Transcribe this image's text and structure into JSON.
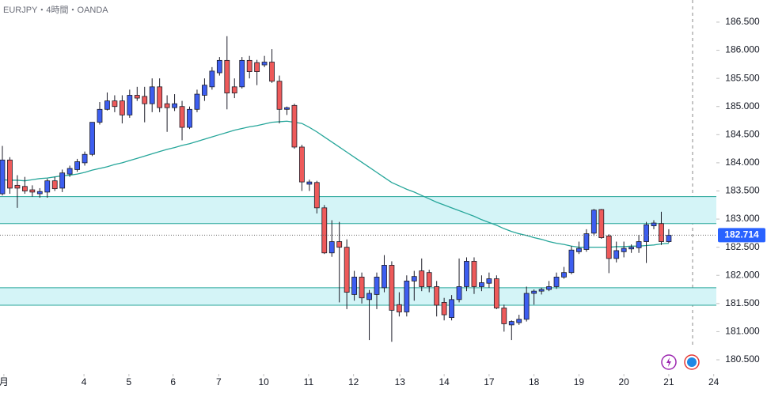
{
  "chart_data": {
    "type": "candlestick",
    "title": "EURJPY・4時間・OANDA",
    "xlim": [
      -0.317,
      95.35
    ],
    "xticks": [
      {
        "value": 0.2,
        "label": "月"
      },
      {
        "value": 10.9,
        "label": "4"
      },
      {
        "value": 16.9,
        "label": "5"
      },
      {
        "value": 22.8,
        "label": "6"
      },
      {
        "value": 28.9,
        "label": "7"
      },
      {
        "value": 34.9,
        "label": "10"
      },
      {
        "value": 40.9,
        "label": "11"
      },
      {
        "value": 46.9,
        "label": "12"
      },
      {
        "value": 53.1,
        "label": "13"
      },
      {
        "value": 59.0,
        "label": "14"
      },
      {
        "value": 65.0,
        "label": "17"
      },
      {
        "value": 71.0,
        "label": "18"
      },
      {
        "value": 77.0,
        "label": "19"
      },
      {
        "value": 83.0,
        "label": "20"
      },
      {
        "value": 89.0,
        "label": "21"
      },
      {
        "value": 95.0,
        "label": "24"
      }
    ],
    "ylim": [
      180.247,
      186.893
    ],
    "yticks": [
      {
        "value": 180.5,
        "label": "180.500"
      },
      {
        "value": 181.0,
        "label": "181.000"
      },
      {
        "value": 181.5,
        "label": "181.500"
      },
      {
        "value": 182.0,
        "label": "182.000"
      },
      {
        "value": 182.5,
        "label": "182.500"
      },
      {
        "value": 183.0,
        "label": "183.000"
      },
      {
        "value": 183.5,
        "label": "183.500"
      },
      {
        "value": 184.0,
        "label": "184.000"
      },
      {
        "value": 184.5,
        "label": "184.500"
      },
      {
        "value": 185.0,
        "label": "185.000"
      },
      {
        "value": 185.5,
        "label": "185.500"
      },
      {
        "value": 186.0,
        "label": "186.000"
      },
      {
        "value": 186.5,
        "label": "186.500"
      }
    ],
    "up_color": "#3d5ef0",
    "down_color": "#ee5a5a",
    "x": [
      0,
      1,
      2,
      3,
      4,
      5,
      6,
      7,
      8,
      9,
      10,
      11,
      12,
      13,
      14,
      15,
      16,
      17,
      18,
      19,
      20,
      21,
      22,
      23,
      24,
      25,
      26,
      27,
      28,
      29,
      30,
      31,
      32,
      33,
      34,
      35,
      36,
      37,
      38,
      39,
      40,
      41,
      42,
      43,
      44,
      45,
      46,
      47,
      48,
      49,
      50,
      51,
      52,
      53,
      54,
      55,
      56,
      57,
      58,
      59,
      60,
      61,
      62,
      63,
      64,
      65,
      66,
      67,
      68,
      69,
      70,
      71,
      72,
      73,
      74,
      75,
      76,
      77,
      78,
      79,
      80,
      81,
      82,
      83,
      84,
      85,
      86,
      87,
      88,
      89
    ],
    "open": [
      183.45,
      184.05,
      183.6,
      183.58,
      183.52,
      183.45,
      183.48,
      183.68,
      183.55,
      183.8,
      183.88,
      184.0,
      184.15,
      184.72,
      184.95,
      185.1,
      185.1,
      184.85,
      185.2,
      185.18,
      185.05,
      185.35,
      185.05,
      184.98,
      185.0,
      184.63,
      184.95,
      185.2,
      185.35,
      185.6,
      185.82,
      185.35,
      185.35,
      185.82,
      185.78,
      185.74,
      185.79,
      185.45,
      184.95,
      185.02,
      184.28,
      183.62,
      183.65,
      183.2,
      182.4,
      182.6,
      182.5,
      181.66,
      181.97,
      181.57,
      181.66,
      181.78,
      182.18,
      181.48,
      181.35,
      181.9,
      182.08,
      182.05,
      181.8,
      181.52,
      181.25,
      181.57,
      181.8,
      182.25,
      181.8,
      181.86,
      181.94,
      181.42,
      181.12,
      181.16,
      181.22,
      181.68,
      181.72,
      181.75,
      181.8,
      181.97,
      182.05,
      182.42,
      182.46,
      182.75,
      183.17,
      182.7,
      182.3,
      182.42,
      182.47,
      182.49,
      182.6,
      182.88,
      182.92,
      182.6
    ],
    "high": [
      184.3,
      184.1,
      183.78,
      183.75,
      183.6,
      183.55,
      183.72,
      183.75,
      183.88,
      183.95,
      184.07,
      184.2,
      184.72,
      185.08,
      185.25,
      185.2,
      185.2,
      185.3,
      185.35,
      185.35,
      185.5,
      185.5,
      185.2,
      185.22,
      185.1,
      185.0,
      185.3,
      185.5,
      185.7,
      185.88,
      186.25,
      185.5,
      185.88,
      185.9,
      185.83,
      185.9,
      186.02,
      185.55,
      185.0,
      185.05,
      184.32,
      183.7,
      183.68,
      183.25,
      182.98,
      182.95,
      182.64,
      182.08,
      182.05,
      181.74,
      182.05,
      182.36,
      182.25,
      181.7,
      182.0,
      182.08,
      182.3,
      182.1,
      181.9,
      181.6,
      181.65,
      182.3,
      182.32,
      182.32,
      182.0,
      182.05,
      182.0,
      181.48,
      181.2,
      181.3,
      181.8,
      181.75,
      181.78,
      181.9,
      182.05,
      182.15,
      182.52,
      182.6,
      182.82,
      183.18,
      183.18,
      182.73,
      182.6,
      182.6,
      182.55,
      182.72,
      182.95,
      182.98,
      183.13,
      182.82
    ],
    "low": [
      183.42,
      183.45,
      183.2,
      183.45,
      183.4,
      183.38,
      183.38,
      183.5,
      183.48,
      183.75,
      183.84,
      183.95,
      184.12,
      184.68,
      184.93,
      184.9,
      184.7,
      184.8,
      185.1,
      184.72,
      184.9,
      184.9,
      184.55,
      184.92,
      184.4,
      184.6,
      184.9,
      185.1,
      185.3,
      185.55,
      184.95,
      185.15,
      185.32,
      185.5,
      185.38,
      185.7,
      185.42,
      184.7,
      184.85,
      184.25,
      183.5,
      183.5,
      183.1,
      182.38,
      182.33,
      181.52,
      181.4,
      181.55,
      181.5,
      180.85,
      181.4,
      181.7,
      180.82,
      181.27,
      181.27,
      181.55,
      181.72,
      181.7,
      181.27,
      181.2,
      181.2,
      181.52,
      181.72,
      181.67,
      181.72,
      181.78,
      181.4,
      181.0,
      180.85,
      181.12,
      181.18,
      181.48,
      181.66,
      181.72,
      181.76,
      181.94,
      182.02,
      182.38,
      182.42,
      182.7,
      182.65,
      182.04,
      182.23,
      182.32,
      182.4,
      182.4,
      182.22,
      182.82,
      182.54,
      182.58
    ],
    "close": [
      184.05,
      183.55,
      183.55,
      183.5,
      183.48,
      183.49,
      183.68,
      183.54,
      183.82,
      183.9,
      184.02,
      184.15,
      184.72,
      184.95,
      185.1,
      185.0,
      184.85,
      185.2,
      185.15,
      185.05,
      185.35,
      184.98,
      184.98,
      185.05,
      184.63,
      184.95,
      185.22,
      185.38,
      185.63,
      185.82,
      185.24,
      185.24,
      185.82,
      185.62,
      185.62,
      185.79,
      185.45,
      184.95,
      184.98,
      184.28,
      183.66,
      183.66,
      183.2,
      182.4,
      182.6,
      182.5,
      181.7,
      181.97,
      181.6,
      181.68,
      181.97,
      182.18,
      181.38,
      181.35,
      181.9,
      181.98,
      181.8,
      181.8,
      181.47,
      181.3,
      181.57,
      181.8,
      182.25,
      181.8,
      181.87,
      181.94,
      181.42,
      181.14,
      181.18,
      181.22,
      181.68,
      181.72,
      181.75,
      181.8,
      181.97,
      182.05,
      182.45,
      182.48,
      182.74,
      183.16,
      182.67,
      182.3,
      182.44,
      182.48,
      182.5,
      182.6,
      182.9,
      182.93,
      182.6,
      182.714
    ],
    "ma_color": "#26a69a",
    "ma_values": [
      183.7,
      183.69,
      183.69,
      183.68,
      183.7,
      183.72,
      183.73,
      183.75,
      183.77,
      183.78,
      183.8,
      183.83,
      183.87,
      183.9,
      183.93,
      183.97,
      184.0,
      184.04,
      184.08,
      184.12,
      184.16,
      184.2,
      184.24,
      184.27,
      184.31,
      184.34,
      184.38,
      184.42,
      184.46,
      184.5,
      184.54,
      184.58,
      184.61,
      184.64,
      184.66,
      184.69,
      184.72,
      184.73,
      184.74,
      184.72,
      184.7,
      184.63,
      184.55,
      184.46,
      184.37,
      184.28,
      184.19,
      184.1,
      184.01,
      183.92,
      183.83,
      183.74,
      183.65,
      183.59,
      183.53,
      183.48,
      183.42,
      183.36,
      183.3,
      183.25,
      183.2,
      183.15,
      183.1,
      183.05,
      182.99,
      182.94,
      182.89,
      182.83,
      182.78,
      182.74,
      182.71,
      182.67,
      182.64,
      182.6,
      182.57,
      182.55,
      182.52,
      182.5,
      182.5,
      182.5,
      182.5,
      182.5,
      182.51,
      182.51,
      182.52,
      182.52,
      182.53,
      182.54,
      182.56,
      182.57
    ],
    "zone_color": "#d4f4f7",
    "zone_line_color": "#26a69a",
    "zones": [
      {
        "from": 183.4,
        "to": 182.92
      },
      {
        "from": 181.78,
        "to": 181.47
      }
    ],
    "last_price_color": "#2962ff"
  }
}
